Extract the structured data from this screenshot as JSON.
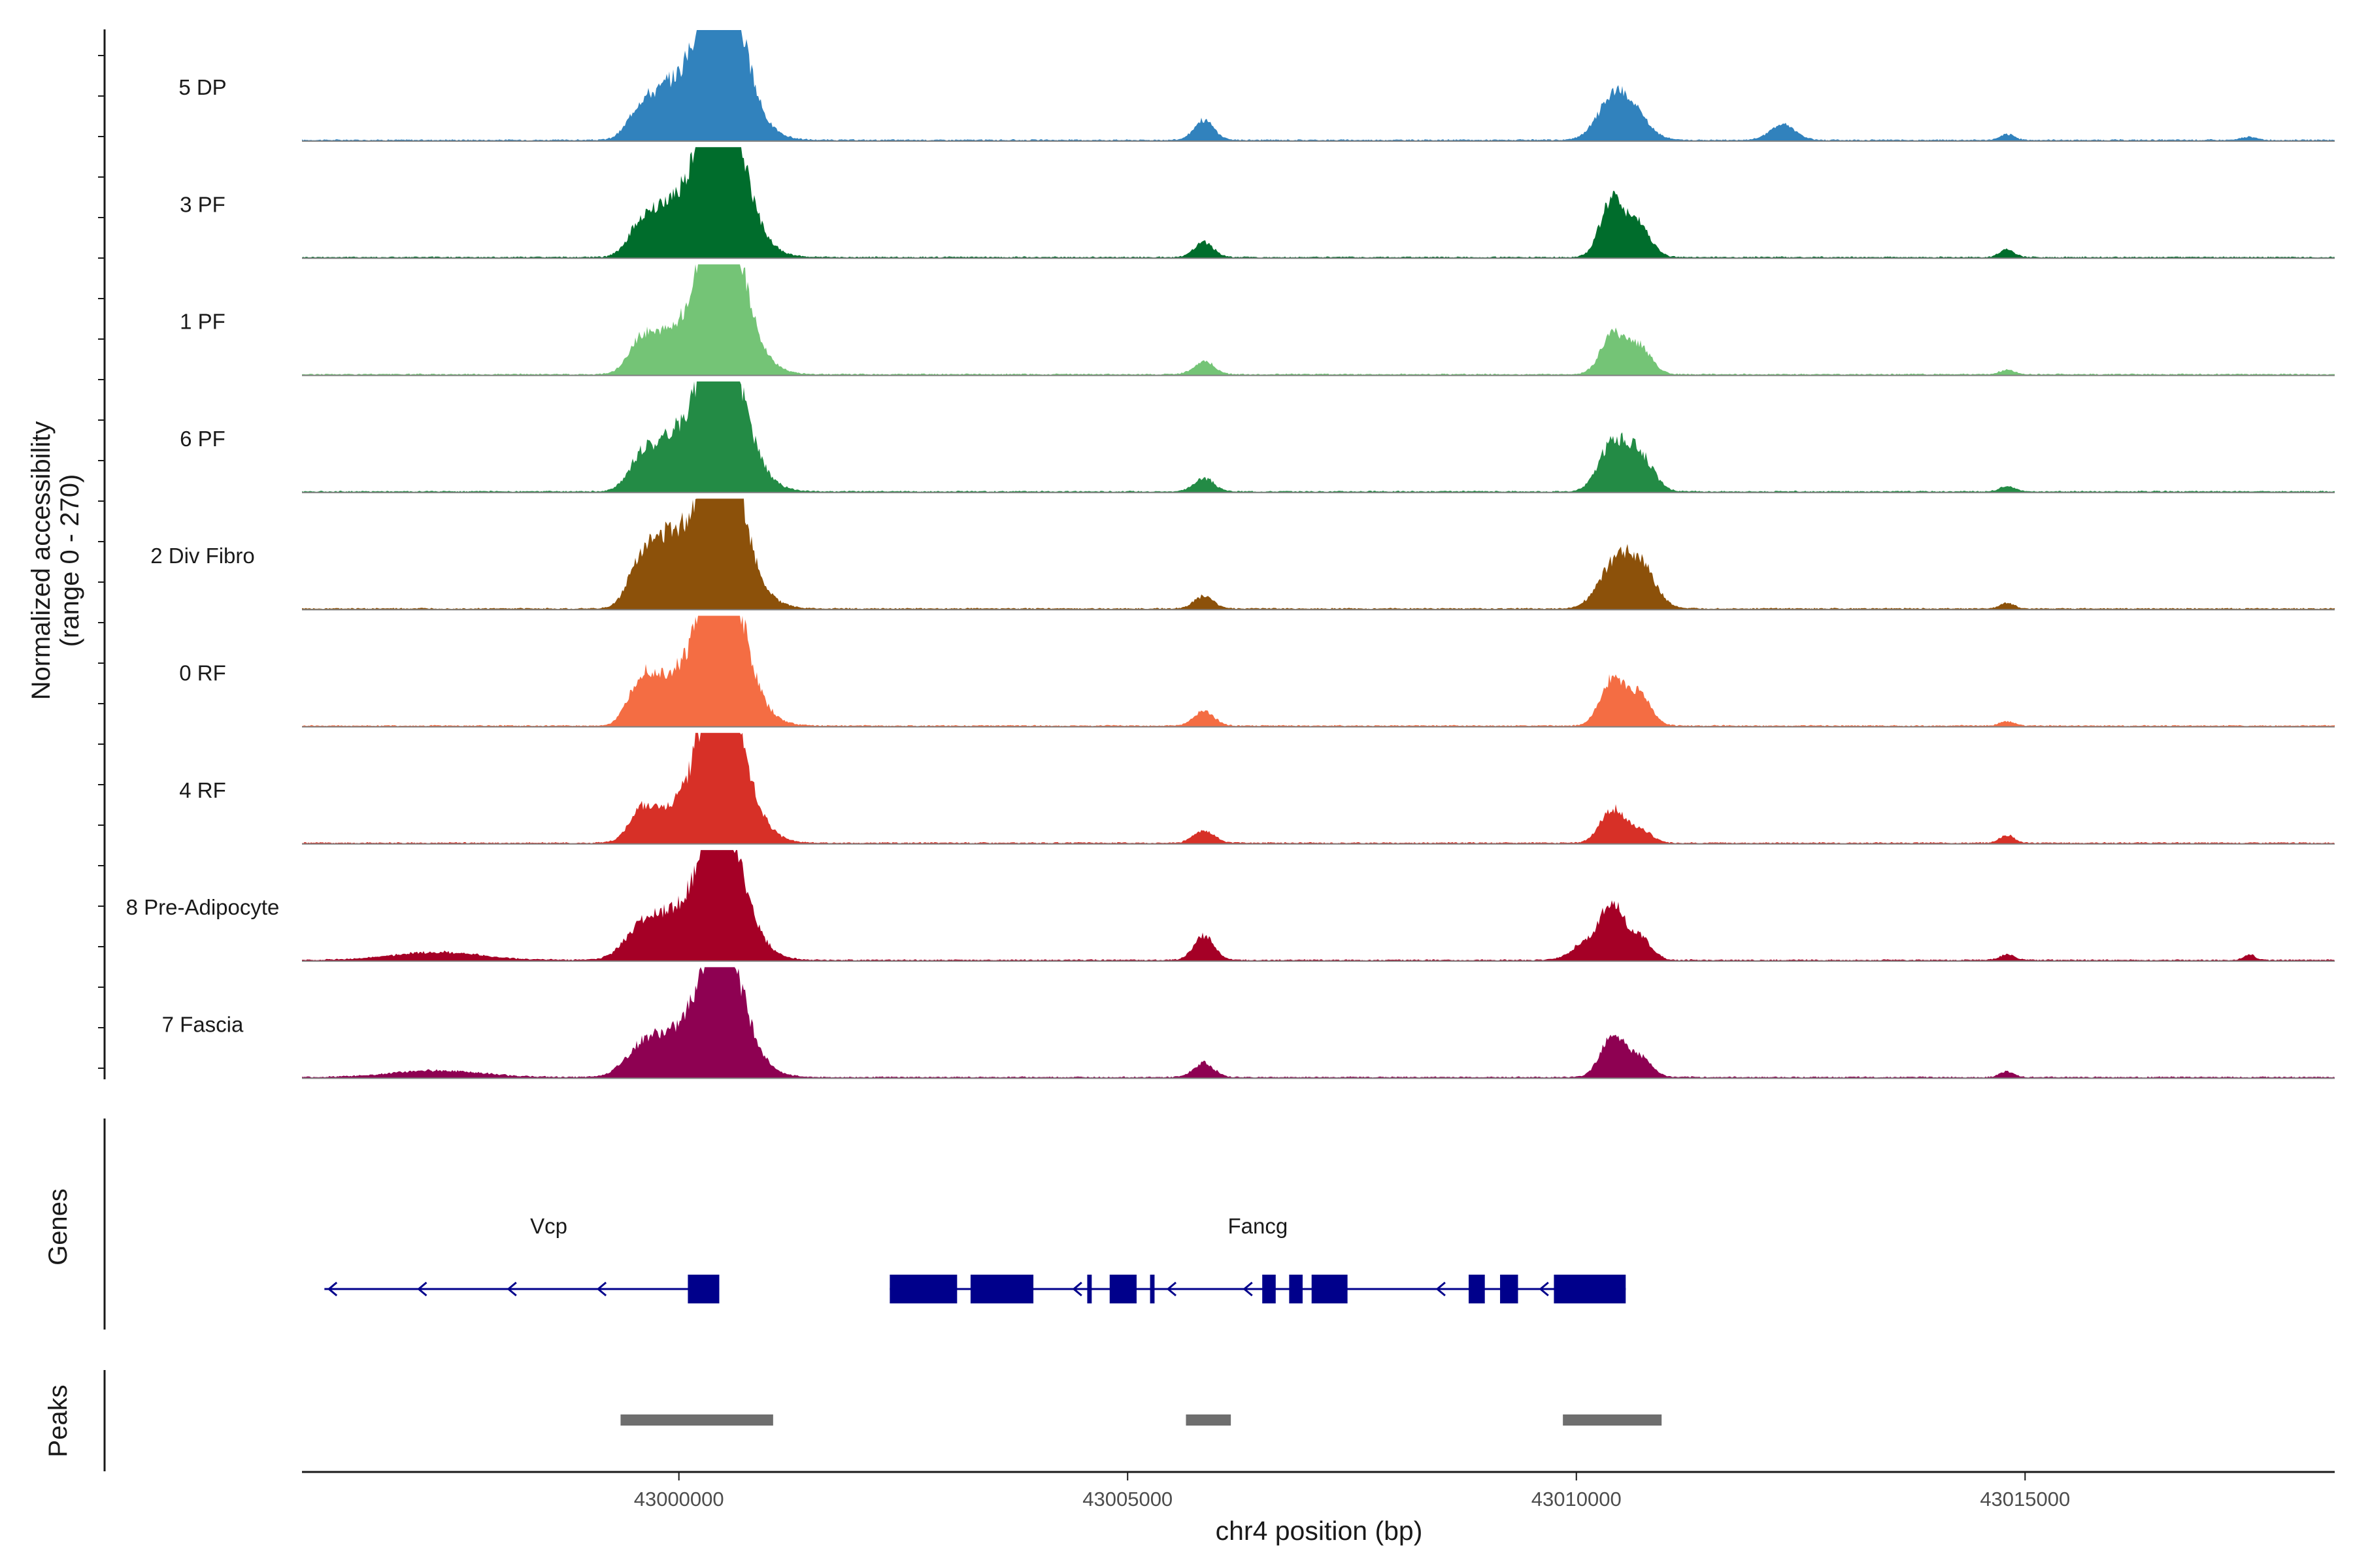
{
  "chart_data": {
    "type": "area",
    "title": "",
    "ylabel_line1": "Normalized accessibility",
    "ylabel_line2": "(range 0 - 270)",
    "xlabel": "chr4 position (bp)",
    "xlim": [
      42995800,
      43018450
    ],
    "x_ticks": [
      43000000,
      43005000,
      43010000,
      43015000
    ],
    "x_tick_labels": [
      "43000000",
      "43005000",
      "43010000",
      "43015000"
    ],
    "y_range": [
      0,
      270
    ],
    "series": [
      {
        "name": "5 DP",
        "color": "#3182BD",
        "peaks": [
          [
            42999600,
            0.33,
            150
          ],
          [
            42999900,
            0.35,
            150
          ],
          [
            43000280,
            0.42,
            200
          ],
          [
            43000500,
            0.9,
            200
          ],
          [
            43000500,
            0.55,
            300
          ],
          [
            43005850,
            0.18,
            110
          ],
          [
            43010400,
            0.35,
            170
          ],
          [
            43010650,
            0.2,
            170
          ],
          [
            43012300,
            0.14,
            140
          ],
          [
            43014800,
            0.05,
            80
          ],
          [
            43017500,
            0.03,
            80
          ]
        ]
      },
      {
        "name": "3 PF",
        "color": "#006D2C",
        "peaks": [
          [
            42999600,
            0.33,
            150
          ],
          [
            42999900,
            0.35,
            150
          ],
          [
            43000280,
            0.42,
            200
          ],
          [
            43000500,
            0.9,
            200
          ],
          [
            43000500,
            0.55,
            300
          ],
          [
            43005850,
            0.13,
            110
          ],
          [
            43010400,
            0.52,
            130
          ],
          [
            43010700,
            0.28,
            130
          ],
          [
            43014800,
            0.07,
            80
          ]
        ]
      },
      {
        "name": "1 PF",
        "color": "#74C476",
        "peaks": [
          [
            42999600,
            0.33,
            150
          ],
          [
            42999900,
            0.25,
            150
          ],
          [
            43000280,
            0.32,
            200
          ],
          [
            43000500,
            0.95,
            200
          ],
          [
            43000500,
            0.55,
            300
          ],
          [
            43005850,
            0.12,
            110
          ],
          [
            43010400,
            0.35,
            130
          ],
          [
            43010700,
            0.25,
            130
          ],
          [
            43014800,
            0.04,
            80
          ]
        ]
      },
      {
        "name": "6 PF",
        "color": "#238B45",
        "peaks": [
          [
            42999600,
            0.33,
            150
          ],
          [
            42999900,
            0.35,
            150
          ],
          [
            43000280,
            0.4,
            200
          ],
          [
            43000500,
            0.8,
            200
          ],
          [
            43000500,
            0.55,
            300
          ],
          [
            43005850,
            0.12,
            110
          ],
          [
            43010400,
            0.42,
            150
          ],
          [
            43010700,
            0.33,
            150
          ],
          [
            43014800,
            0.05,
            80
          ]
        ]
      },
      {
        "name": "2 Div Fibro",
        "color": "#8C510A",
        "peaks": [
          [
            42999600,
            0.48,
            150
          ],
          [
            42999900,
            0.5,
            150
          ],
          [
            43000280,
            0.42,
            200
          ],
          [
            43000500,
            0.85,
            200
          ],
          [
            43000500,
            0.55,
            300
          ],
          [
            43005850,
            0.11,
            110
          ],
          [
            43010400,
            0.35,
            170
          ],
          [
            43010700,
            0.4,
            170
          ],
          [
            43014800,
            0.05,
            80
          ]
        ]
      },
      {
        "name": "0 RF",
        "color": "#F46D43",
        "peaks": [
          [
            42999600,
            0.45,
            150
          ],
          [
            42999900,
            0.3,
            150
          ],
          [
            43000280,
            0.35,
            200
          ],
          [
            43000500,
            0.9,
            200
          ],
          [
            43000500,
            0.55,
            300
          ],
          [
            43005850,
            0.13,
            110
          ],
          [
            43010400,
            0.42,
            130
          ],
          [
            43010700,
            0.28,
            130
          ],
          [
            43014800,
            0.04,
            80
          ]
        ]
      },
      {
        "name": "4 RF",
        "color": "#D73027",
        "peaks": [
          [
            42999600,
            0.3,
            150
          ],
          [
            42999900,
            0.18,
            150
          ],
          [
            43000280,
            0.32,
            200
          ],
          [
            43000500,
            0.85,
            200
          ],
          [
            43000500,
            0.55,
            300
          ],
          [
            43005850,
            0.12,
            110
          ],
          [
            43010400,
            0.3,
            130
          ],
          [
            43010700,
            0.12,
            130
          ],
          [
            43014800,
            0.07,
            80
          ]
        ]
      },
      {
        "name": "8 Pre-Adipocyte",
        "color": "#A50026",
        "peaks": [
          [
            42997300,
            0.07,
            500
          ],
          [
            42999600,
            0.28,
            200
          ],
          [
            42999900,
            0.25,
            200
          ],
          [
            43000280,
            0.28,
            200
          ],
          [
            43000500,
            0.75,
            200
          ],
          [
            43000500,
            0.45,
            300
          ],
          [
            43005850,
            0.22,
            110
          ],
          [
            43010100,
            0.15,
            150
          ],
          [
            43010400,
            0.48,
            130
          ],
          [
            43010700,
            0.2,
            130
          ],
          [
            43014800,
            0.05,
            80
          ],
          [
            43017500,
            0.05,
            60
          ]
        ]
      },
      {
        "name": "7 Fascia",
        "color": "#8E0152",
        "peaks": [
          [
            42997300,
            0.06,
            500
          ],
          [
            42999600,
            0.26,
            200
          ],
          [
            42999900,
            0.22,
            200
          ],
          [
            43000280,
            0.3,
            200
          ],
          [
            43000500,
            0.7,
            200
          ],
          [
            43000500,
            0.45,
            300
          ],
          [
            43005850,
            0.13,
            110
          ],
          [
            43010400,
            0.38,
            130
          ],
          [
            43010700,
            0.18,
            130
          ],
          [
            43014800,
            0.05,
            80
          ]
        ]
      }
    ],
    "genes_panel_label": "Genes",
    "genes": [
      {
        "name": "Vcp",
        "label_x": 42998550,
        "strand": "-",
        "start": 42996050,
        "end": 43000450,
        "exons": [
          [
            43000100,
            43000450
          ]
        ],
        "arrows": [
          42996100,
          42997100,
          42998100,
          42999100
        ]
      },
      {
        "name": "Fancg",
        "label_x": 43006450,
        "strand": "-",
        "start": 43002350,
        "end": 43010550,
        "exons": [
          [
            43002350,
            43003100
          ],
          [
            43003250,
            43003950
          ],
          [
            43004550,
            43004600
          ],
          [
            43004800,
            43005100
          ],
          [
            43005250,
            43005300
          ],
          [
            43006500,
            43006650
          ],
          [
            43006800,
            43006950
          ],
          [
            43007050,
            43007450
          ],
          [
            43008800,
            43008980
          ],
          [
            43009150,
            43009350
          ],
          [
            43009750,
            43010550
          ]
        ],
        "arrows": [
          43004400,
          43005450,
          43006300,
          43008450,
          43009600
        ]
      }
    ],
    "peaks_panel_label": "Peaks",
    "peak_regions": [
      [
        42999350,
        43001050
      ],
      [
        43005650,
        43006150
      ],
      [
        43009850,
        43010950
      ]
    ],
    "colors": {
      "gene": "#00008B",
      "peak": "#6E6E6E",
      "baseline": "#808080",
      "axis": "#1a1a1a"
    }
  }
}
